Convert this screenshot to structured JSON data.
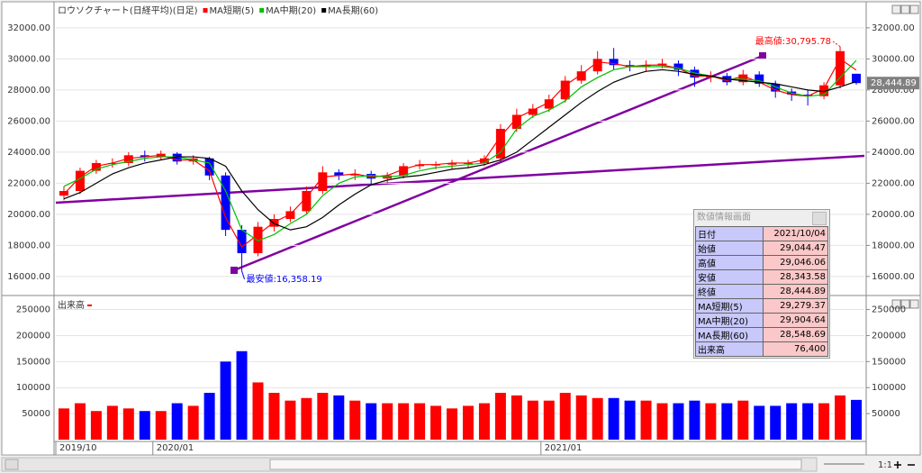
{
  "chart_data": [
    {
      "type": "candlestick",
      "title": "ロウソクチャート(日経平均)(日足)",
      "categories": [
        "2019/10",
        null,
        null,
        null,
        null,
        null,
        "2020/01",
        null,
        null,
        null,
        null,
        null,
        null,
        null,
        null,
        null,
        null,
        null,
        null,
        null,
        null,
        null,
        null,
        null,
        null,
        null,
        null,
        null,
        null,
        null,
        "2021/01",
        null,
        null,
        null,
        null,
        null,
        null,
        null,
        null,
        null,
        null,
        null,
        null,
        null,
        null,
        null,
        null,
        null,
        null,
        null
      ],
      "open": [
        21200,
        21500,
        22800,
        23300,
        23300,
        23800,
        23700,
        23900,
        23400,
        23600,
        22500,
        19000,
        17500,
        19200,
        19700,
        20200,
        21500,
        22700,
        22500,
        22600,
        22300,
        22500,
        23100,
        23200,
        23200,
        23300,
        23300,
        23600,
        25500,
        26400,
        26800,
        27400,
        28600,
        29200,
        30000,
        29600,
        29500,
        29600,
        29700,
        29300,
        28800,
        28900,
        28500,
        29000,
        28400,
        27900,
        27700,
        27600,
        28300,
        29044.47
      ],
      "high": [
        21800,
        23000,
        23500,
        23600,
        24000,
        24100,
        24100,
        24000,
        23800,
        23700,
        22700,
        19300,
        19500,
        20000,
        20500,
        21800,
        23100,
        22900,
        22900,
        22800,
        22700,
        23300,
        23500,
        23400,
        23500,
        23500,
        23800,
        25800,
        26800,
        27100,
        27700,
        28900,
        29600,
        30500,
        30700,
        29900,
        29900,
        30000,
        29900,
        29500,
        29200,
        29100,
        29300,
        29200,
        28600,
        28100,
        28000,
        28500,
        30795.78,
        29046.06
      ],
      "low": [
        20900,
        21300,
        22600,
        23000,
        23100,
        23400,
        23500,
        23200,
        23200,
        22200,
        18600,
        16358.19,
        17300,
        18900,
        19500,
        20000,
        21300,
        22200,
        22200,
        21900,
        22000,
        22300,
        22900,
        22900,
        22900,
        23000,
        23100,
        23400,
        25300,
        26200,
        26600,
        27200,
        28400,
        29000,
        29300,
        29200,
        29200,
        29400,
        28900,
        28200,
        28500,
        28300,
        28300,
        28200,
        27500,
        27300,
        27000,
        27400,
        28100,
        28343.58
      ],
      "close": [
        21500,
        22800,
        23300,
        23300,
        23800,
        23700,
        23900,
        23400,
        23600,
        22500,
        19000,
        17500,
        19200,
        19700,
        20200,
        21500,
        22700,
        22500,
        22600,
        22300,
        22500,
        23100,
        23200,
        23200,
        23300,
        23300,
        23600,
        25500,
        26400,
        26800,
        27400,
        28600,
        29200,
        30000,
        29600,
        29500,
        29600,
        29700,
        29300,
        28800,
        28900,
        28500,
        29000,
        28400,
        27900,
        27700,
        27600,
        28300,
        30500,
        28444.89
      ],
      "up_color": "#ff0000",
      "down_color": "#0000ff",
      "series": [
        {
          "name": "MA短期(5)",
          "color": "#ff0000",
          "values": [
            21300,
            22400,
            23100,
            23300,
            23600,
            23700,
            23800,
            23500,
            23500,
            22800,
            19800,
            17900,
            18700,
            19500,
            20000,
            21100,
            22400,
            22500,
            22600,
            22400,
            22500,
            22900,
            23200,
            23200,
            23300,
            23300,
            23500,
            25000,
            26200,
            26700,
            27200,
            28300,
            29000,
            29800,
            29700,
            29500,
            29600,
            29600,
            29400,
            28900,
            28900,
            28600,
            28900,
            28500,
            28000,
            27700,
            27600,
            28100,
            30000,
            29279.37
          ]
        },
        {
          "name": "MA中期(20)",
          "color": "#00c000",
          "values": [
            21800,
            22300,
            22900,
            23200,
            23400,
            23600,
            23700,
            23700,
            23500,
            23300,
            21500,
            19000,
            18300,
            18700,
            19400,
            20000,
            21200,
            22000,
            22400,
            22500,
            22400,
            22500,
            22800,
            23000,
            23100,
            23200,
            23300,
            24000,
            25500,
            26300,
            26700,
            27300,
            28200,
            28800,
            29300,
            29500,
            29500,
            29500,
            29400,
            29100,
            28900,
            28700,
            28700,
            28600,
            28200,
            27800,
            27600,
            27700,
            28800,
            29904.64
          ]
        },
        {
          "name": "MA長期(60)",
          "color": "#000000",
          "values": [
            21000,
            21400,
            22000,
            22600,
            23000,
            23300,
            23500,
            23700,
            23700,
            23600,
            23100,
            21500,
            20300,
            19400,
            19000,
            19200,
            19800,
            20600,
            21300,
            21900,
            22200,
            22400,
            22500,
            22700,
            22900,
            23000,
            23200,
            23500,
            24000,
            24800,
            25600,
            26400,
            27200,
            27900,
            28500,
            28900,
            29200,
            29300,
            29200,
            29000,
            28900,
            28700,
            28600,
            28500,
            28400,
            28200,
            28000,
            27900,
            28200,
            28548.69
          ]
        }
      ],
      "ylim": [
        14950,
        33500
      ],
      "yticks": [
        {
          "value": 16000,
          "label": "16000.00"
        },
        {
          "value": 18000,
          "label": "18000.00"
        },
        {
          "value": 20000,
          "label": "20000.00"
        },
        {
          "value": 22000,
          "label": "22000.00"
        },
        {
          "value": 24000,
          "label": "24000.00"
        },
        {
          "value": 26000,
          "label": "26000.00"
        },
        {
          "value": 28000,
          "label": "28000.00"
        },
        {
          "value": 30000,
          "label": "30000.00"
        },
        {
          "value": 32000,
          "label": "32000.00"
        }
      ],
      "grid": true,
      "max_label": "最高値:30,795.78",
      "min_label": "最安値:16,358.19",
      "last_label": "28,444.89"
    },
    {
      "type": "bar",
      "title": "出来高",
      "values": [
        60000,
        70000,
        55000,
        65000,
        60000,
        55000,
        55000,
        70000,
        65000,
        90000,
        150000,
        170000,
        110000,
        90000,
        75000,
        80000,
        90000,
        85000,
        75000,
        70000,
        70000,
        70000,
        70000,
        65000,
        60000,
        65000,
        70000,
        90000,
        85000,
        75000,
        75000,
        90000,
        85000,
        80000,
        80000,
        75000,
        75000,
        70000,
        70000,
        75000,
        70000,
        70000,
        75000,
        65000,
        65000,
        70000,
        70000,
        70000,
        85000,
        76400
      ],
      "ylim": [
        0,
        270000
      ],
      "yticks": [
        50000,
        100000,
        150000,
        200000,
        250000
      ],
      "grid": true
    }
  ],
  "info_panel": {
    "title": "数値情報画面",
    "rows": [
      [
        "日付",
        "2021/10/04"
      ],
      [
        "始値",
        "29,044.47"
      ],
      [
        "高値",
        "29,046.06"
      ],
      [
        "安値",
        "28,343.58"
      ],
      [
        "終値",
        "28,444.89"
      ],
      [
        "MA短期(5)",
        "29,279.37"
      ],
      [
        "MA中期(20)",
        "29,904.64"
      ],
      [
        "MA長期(60)",
        "28,548.69"
      ],
      [
        "出来高",
        "76,400"
      ]
    ]
  },
  "toolbar": {
    "zoom": "1:1"
  }
}
